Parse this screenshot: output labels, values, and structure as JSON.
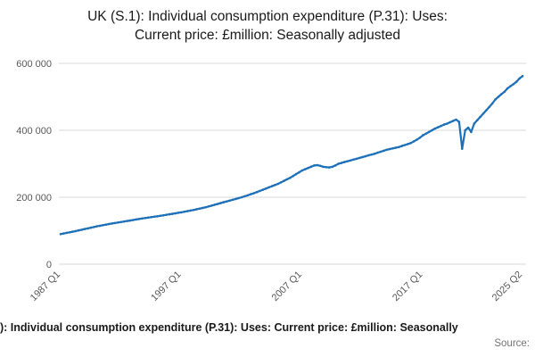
{
  "title": {
    "line1": "UK (S.1): Individual consumption expenditure (P.31): Uses:",
    "line2": "Current price: £million: Seasonally adjusted"
  },
  "footer": {
    "legend": "): Individual consumption expenditure (P.31): Uses: Current price: £million: Seasonally",
    "source_label": "Source:"
  },
  "chart_data": {
    "type": "line",
    "title": "UK (S.1): Individual consumption expenditure (P.31): Uses: Current price: £million: Seasonally adjusted",
    "frequency": "quarterly",
    "x_start": "1987 Q1",
    "x_end": "2025 Q2",
    "ylim": [
      0,
      620000
    ],
    "y_ticks": [
      0,
      200000,
      400000,
      600000
    ],
    "grid": true,
    "legend_position": "bottom",
    "line_color": "#1d70b8",
    "axis_label_color": "#595959",
    "grid_color": "#d9d9d9",
    "x_ticks": [
      {
        "index": 0,
        "label": "1987 Q1"
      },
      {
        "index": 40,
        "label": "1997 Q1"
      },
      {
        "index": 80,
        "label": "2007 Q1"
      },
      {
        "index": 120,
        "label": "2017 Q1"
      },
      {
        "index": 153,
        "label": "2025 Q2"
      }
    ],
    "series": [
      {
        "name": "UK (S.1): Individual consumption expenditure (P.31): Uses: Current price: £million: Seasonally adjusted",
        "values": [
          90000,
          91750,
          93500,
          95250,
          97000,
          99000,
          101000,
          103000,
          105000,
          107000,
          109000,
          111000,
          113000,
          114750,
          116500,
          118250,
          120000,
          121500,
          123000,
          124500,
          126000,
          127500,
          129000,
          130500,
          132000,
          133500,
          135000,
          136500,
          138000,
          139250,
          140500,
          141750,
          143000,
          144500,
          146000,
          147500,
          149000,
          150500,
          152000,
          153500,
          155000,
          156750,
          158500,
          160250,
          162000,
          164000,
          166000,
          168000,
          170000,
          172500,
          175000,
          177500,
          180000,
          182500,
          185000,
          187500,
          190000,
          192500,
          195000,
          197500,
          200000,
          203000,
          206000,
          209000,
          212000,
          215500,
          219000,
          222500,
          226000,
          229500,
          233000,
          236500,
          240000,
          244500,
          249000,
          253500,
          258000,
          263500,
          269000,
          274500,
          280000,
          283750,
          287500,
          291250,
          295000,
          296000,
          294000,
          291000,
          290000,
          289000,
          291000,
          295000,
          300000,
          302500,
          305000,
          307500,
          310000,
          312500,
          315000,
          317500,
          320000,
          322500,
          325000,
          327500,
          330000,
          333000,
          336000,
          339000,
          342000,
          344000,
          346000,
          348000,
          350000,
          353000,
          356000,
          359000,
          362000,
          367000,
          372000,
          378000,
          385000,
          390000,
          395000,
          400000,
          405000,
          409000,
          413000,
          417000,
          420000,
          424000,
          428000,
          432000,
          425000,
          345000,
          400000,
          408000,
          395000,
          420000,
          430000,
          440000,
          450000,
          460000,
          470000,
          480000,
          492000,
          500000,
          508000,
          515000,
          525000,
          532000,
          538000,
          545000,
          555000,
          562000
        ]
      }
    ]
  }
}
